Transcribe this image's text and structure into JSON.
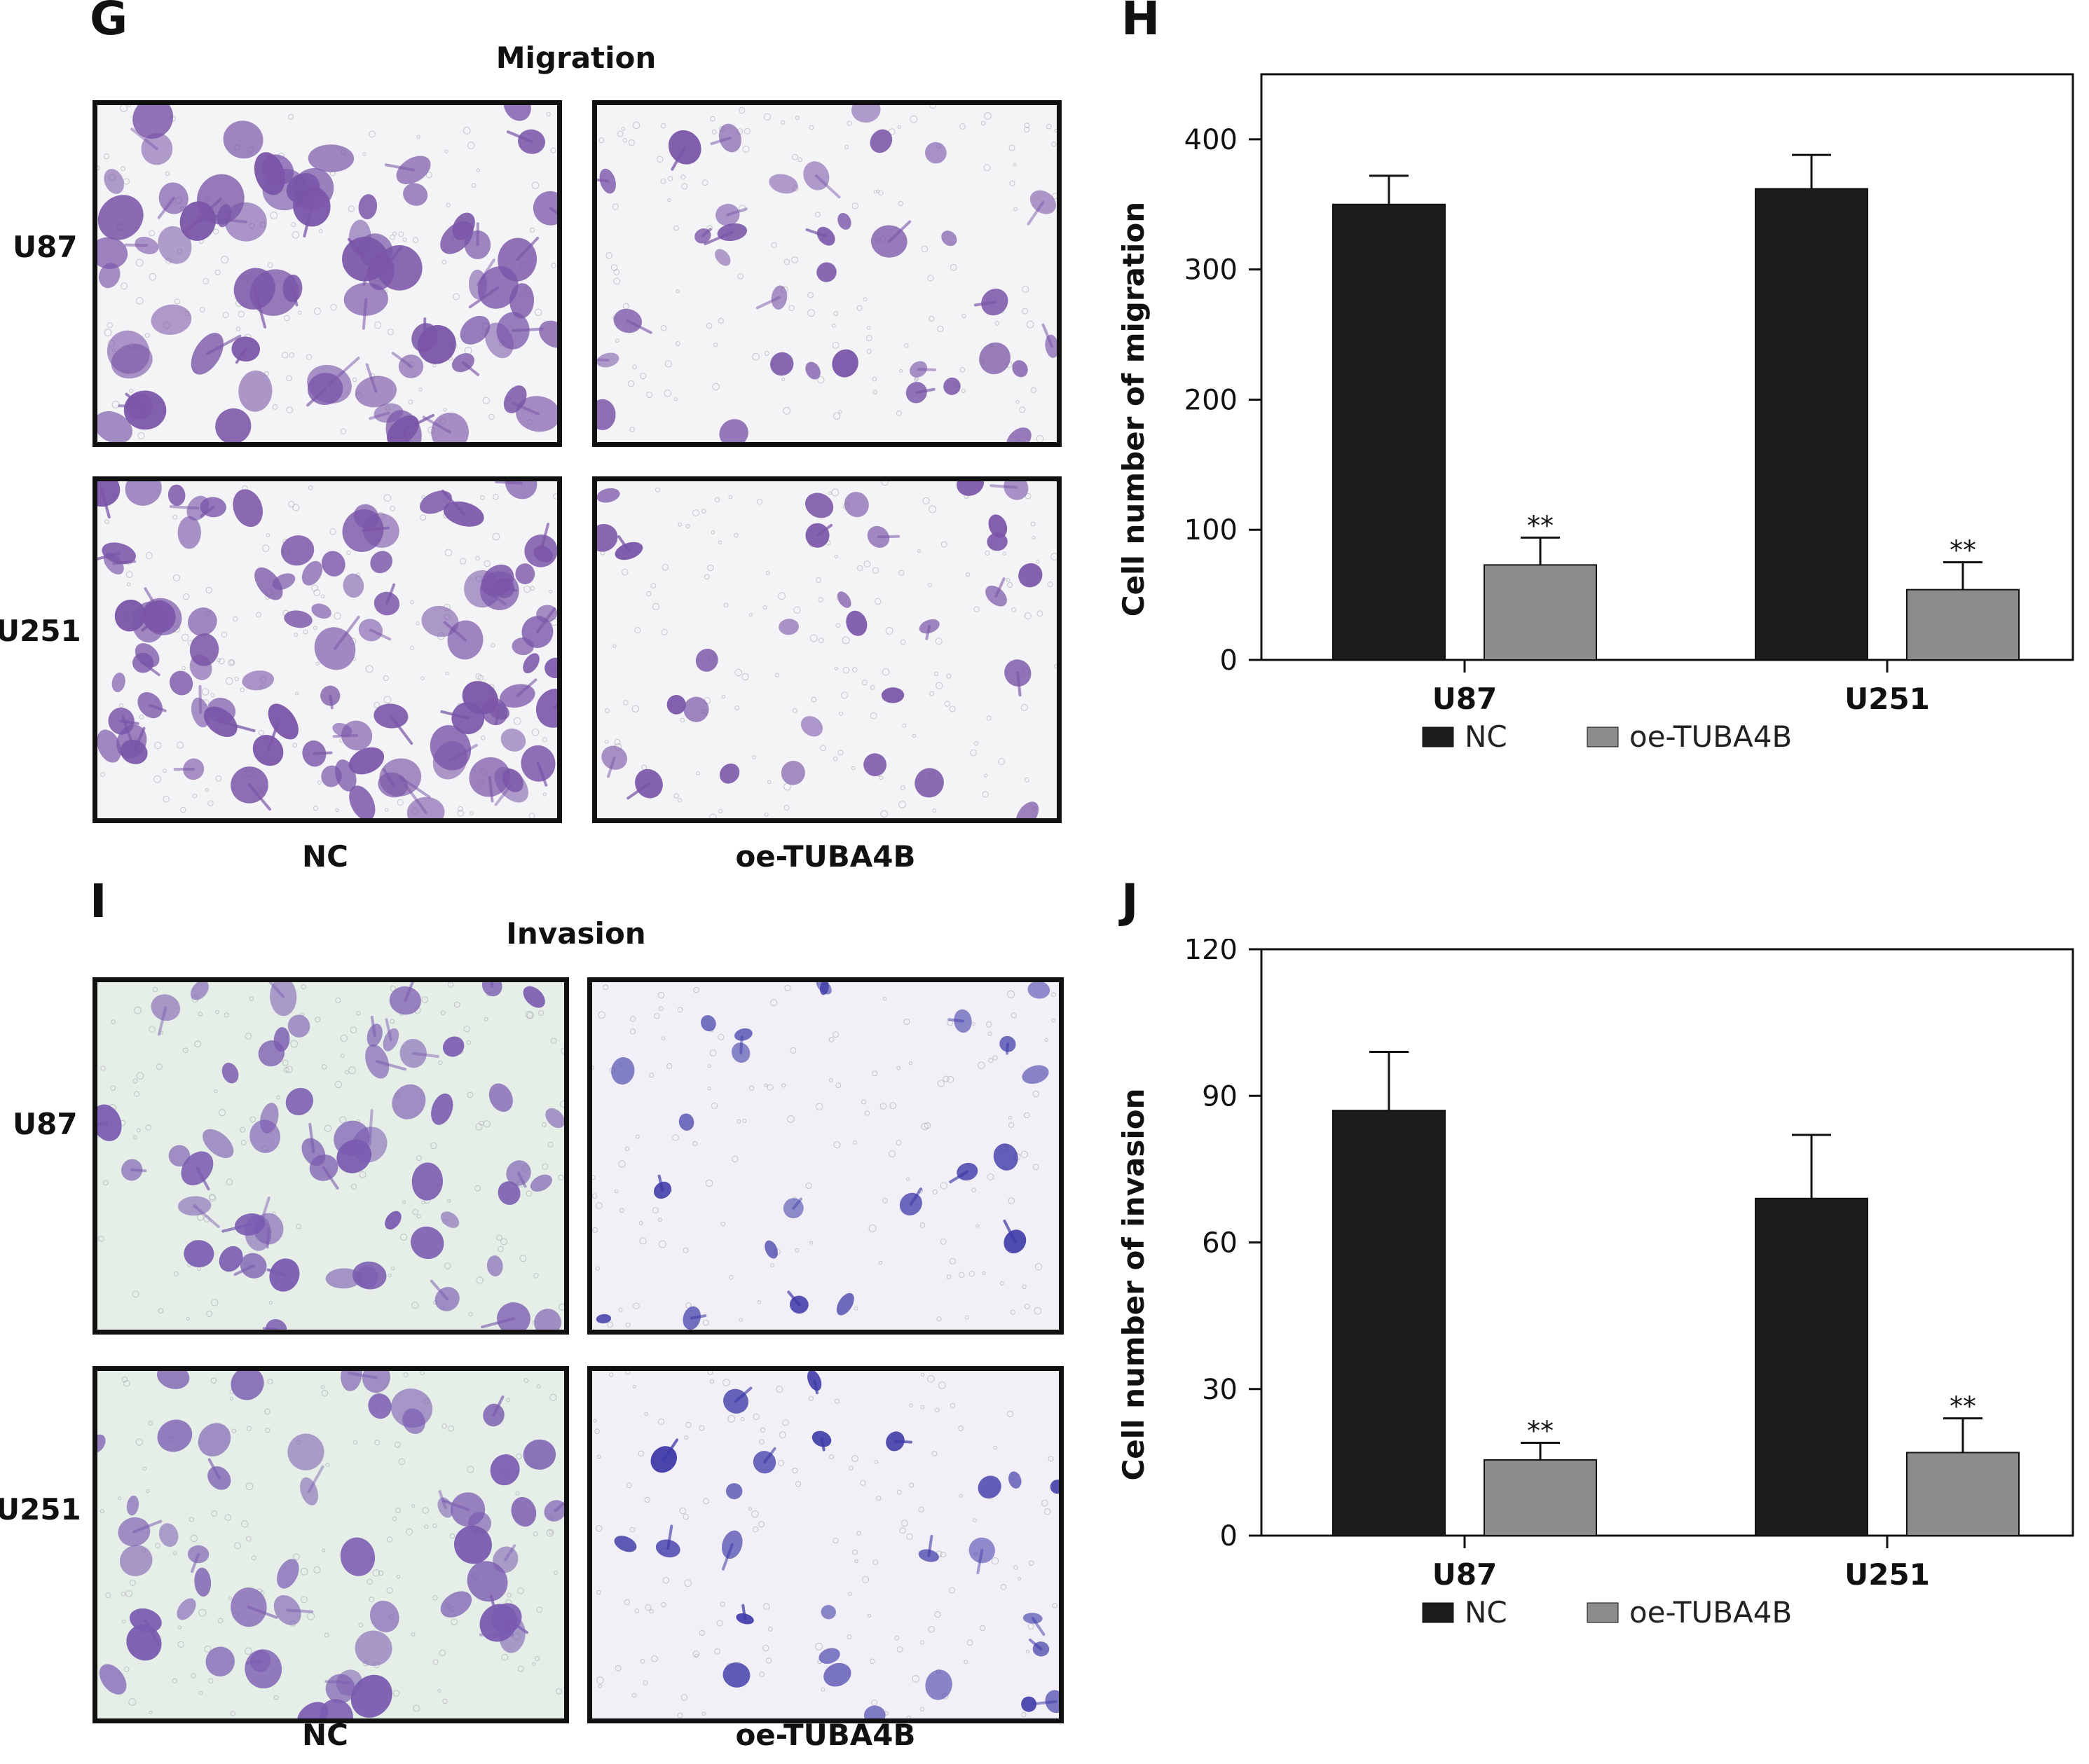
{
  "panels": {
    "G": "G",
    "H": "H",
    "I": "I",
    "J": "J"
  },
  "migration_section": {
    "title": "Migration",
    "row_labels": [
      "U87",
      "U251"
    ],
    "col_labels": [
      "NC",
      "oe-TUBA4B"
    ]
  },
  "invasion_section": {
    "title": "Invasion",
    "row_labels": [
      "U87",
      "U251"
    ],
    "col_labels": [
      "NC",
      "oe-TUBA4B"
    ]
  },
  "colors": {
    "nc": "#1c1c1c",
    "oe": "#8c8c8c",
    "stain_migration": "#7a55a8",
    "stain_invasion_nc": "#7a5bb0",
    "stain_invasion_oe": "#3e3aa8",
    "bg_migration": "#f4f4f7",
    "bg_invasion_nc": "#e6eee8",
    "bg_invasion_oe": "#f2f0f6"
  },
  "chart_data": [
    {
      "type": "bar",
      "panel": "H",
      "categories": [
        "U87",
        "U251"
      ],
      "ylabel": "Cell number of migration",
      "ylim": [
        0,
        450
      ],
      "yticks": [
        0,
        100,
        200,
        300,
        400
      ],
      "series": [
        {
          "name": "NC",
          "values": [
            350,
            362
          ],
          "errors": [
            22,
            26
          ]
        },
        {
          "name": "oe-TUBA4B",
          "values": [
            73,
            54
          ],
          "errors": [
            21,
            21
          ]
        }
      ],
      "annotations": [
        {
          "category": "U87",
          "series": "oe-TUBA4B",
          "text": "**"
        },
        {
          "category": "U251",
          "series": "oe-TUBA4B",
          "text": "**"
        }
      ],
      "legend_placement": "bottom"
    },
    {
      "type": "bar",
      "panel": "J",
      "categories": [
        "U87",
        "U251"
      ],
      "ylabel": "Cell number of invasion",
      "ylim": [
        0,
        120
      ],
      "yticks": [
        0,
        30,
        60,
        90,
        120
      ],
      "series": [
        {
          "name": "NC",
          "values": [
            87,
            69
          ],
          "errors": [
            12,
            13
          ]
        },
        {
          "name": "oe-TUBA4B",
          "values": [
            15.5,
            17
          ],
          "errors": [
            3.5,
            7
          ]
        }
      ],
      "annotations": [
        {
          "category": "U87",
          "series": "oe-TUBA4B",
          "text": "**"
        },
        {
          "category": "U251",
          "series": "oe-TUBA4B",
          "text": "**"
        }
      ],
      "legend_placement": "bottom"
    }
  ]
}
